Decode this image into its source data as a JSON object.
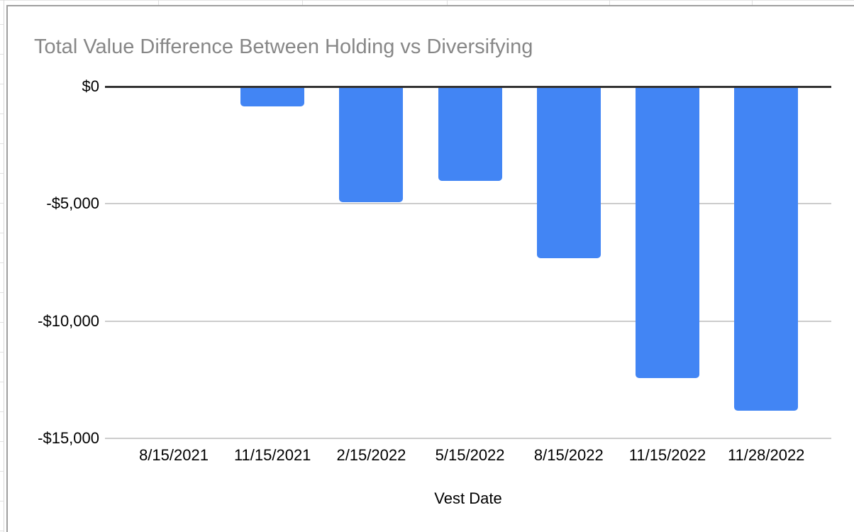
{
  "app": {
    "context": "spreadsheet-embedded-chart"
  },
  "colors": {
    "bar": "#4285f4",
    "title_text": "#878787",
    "axis_text": "#000000",
    "zero_line": "#333333",
    "gridline": "#cccccc",
    "chart_border": "#9e9e9e",
    "sheet_gridline": "#e0e0e0"
  },
  "chart_data": {
    "type": "bar",
    "title": "Total Value Difference Between Holding vs Diversifying",
    "xlabel": "Vest Date",
    "ylabel": "",
    "categories": [
      "8/15/2021",
      "11/15/2021",
      "2/15/2022",
      "5/15/2022",
      "8/15/2022",
      "11/15/2022",
      "11/28/2022"
    ],
    "values": [
      0,
      -800,
      -4900,
      -4000,
      -7300,
      -12400,
      -13800
    ],
    "y_ticks": [
      {
        "value": 0,
        "label": "$0"
      },
      {
        "value": -5000,
        "label": "-$5,000"
      },
      {
        "value": -10000,
        "label": "-$10,000"
      },
      {
        "value": -15000,
        "label": "-$15,000"
      }
    ],
    "ylim": [
      -15000,
      0
    ],
    "grid": true,
    "legend": "none",
    "bar_color": "#4285f4"
  }
}
